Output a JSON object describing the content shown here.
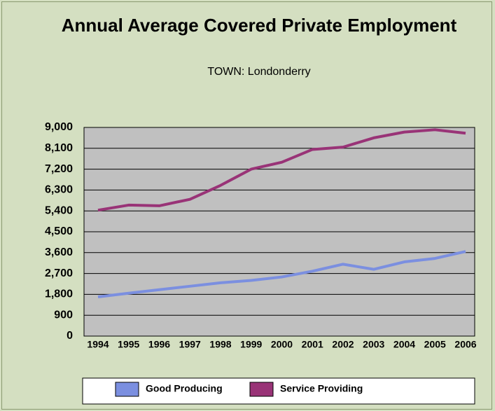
{
  "chart_data": {
    "type": "line",
    "title": "Annual Average Covered Private Employment",
    "subtitle": "TOWN: Londonderry",
    "categories": [
      "1994",
      "1995",
      "1996",
      "1997",
      "1998",
      "1999",
      "2000",
      "2001",
      "2002",
      "2003",
      "2004",
      "2005",
      "2006"
    ],
    "series": [
      {
        "name": "Good Producing",
        "color": "#7b8fe0",
        "values": [
          1690,
          1850,
          2000,
          2150,
          2300,
          2400,
          2550,
          2800,
          3100,
          2880,
          3200,
          3350,
          3650
        ]
      },
      {
        "name": "Service Providing",
        "color": "#993377",
        "values": [
          5430,
          5650,
          5620,
          5900,
          6500,
          7200,
          7500,
          8050,
          8150,
          8550,
          8800,
          8900,
          8750
        ]
      }
    ],
    "ylim": [
      0,
      9000
    ],
    "yticks": [
      0,
      900,
      {
        "value": 1800,
        "label": "1,800"
      },
      {
        "value": 2700,
        "label": "2,700"
      },
      {
        "value": 3600,
        "label": "3,600"
      },
      {
        "value": 4500,
        "label": "4,500"
      },
      {
        "value": 5400,
        "label": "5,400"
      },
      {
        "value": 6300,
        "label": "6,300"
      },
      {
        "value": 7200,
        "label": "7,200"
      },
      {
        "value": 8100,
        "label": "8,100"
      },
      {
        "value": 9000,
        "label": "9,000"
      }
    ],
    "grid": true
  }
}
